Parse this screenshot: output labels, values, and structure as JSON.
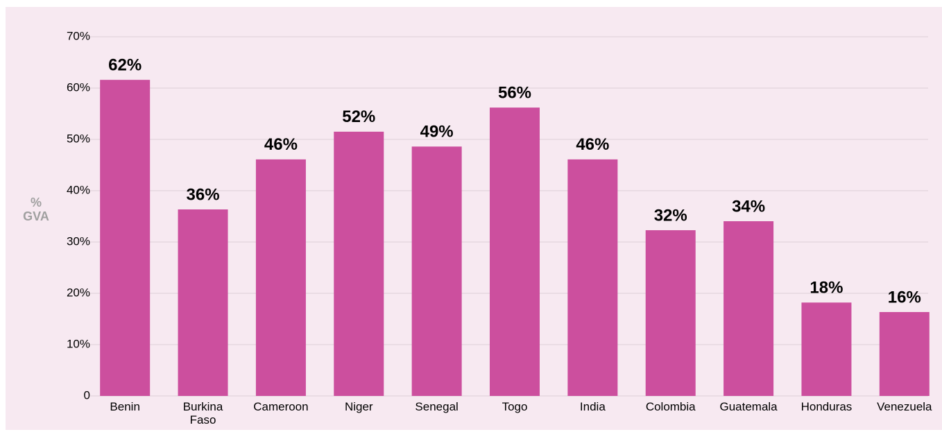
{
  "chart_data": {
    "type": "bar",
    "ylabel": "% GVA",
    "categories": [
      "Benin",
      "Burkina Faso",
      "Cameroon",
      "Niger",
      "Senegal",
      "Togo",
      "India",
      "Colombia",
      "Guatemala",
      "Honduras",
      "Venezuela"
    ],
    "values": [
      61.6,
      36.35,
      46.1,
      51.5,
      48.6,
      56.2,
      46.1,
      32.3,
      34.05,
      18.2,
      16.35
    ],
    "value_labels": [
      "62%",
      "36%",
      "46%",
      "52%",
      "49%",
      "56%",
      "46%",
      "32%",
      "34%",
      "18%",
      "16%"
    ],
    "color": "#cc4f9e",
    "ylim": [
      0,
      70
    ],
    "yticks": [
      0,
      {
        "value": 10,
        "label": "10%"
      },
      {
        "value": 20,
        "label": "20%"
      },
      {
        "value": 30,
        "label": "30%"
      },
      {
        "value": 40,
        "label": "40%"
      },
      {
        "value": 50,
        "label": "50%"
      },
      {
        "value": 60,
        "label": "60%"
      },
      {
        "value": 70,
        "label": "70%"
      }
    ],
    "grid": true
  }
}
